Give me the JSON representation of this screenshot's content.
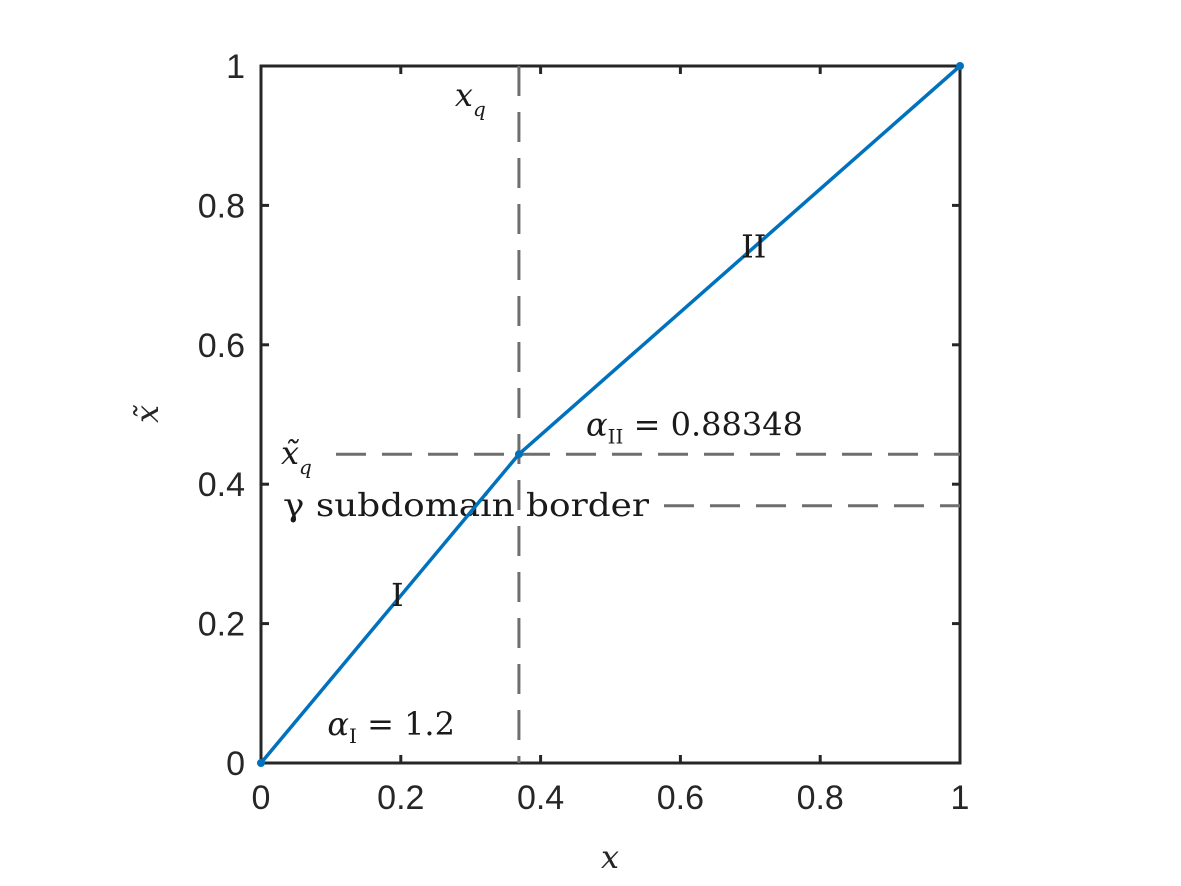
{
  "chart_data": {
    "type": "line",
    "xlabel": "x",
    "ylabel": "x̃",
    "xlim": [
      0,
      1
    ],
    "ylim": [
      0,
      1
    ],
    "x_ticks": [
      "0",
      "0.2",
      "0.4",
      "0.6",
      "0.8",
      "1"
    ],
    "y_ticks": [
      "0",
      "0.2",
      "0.4",
      "0.6",
      "0.8",
      "1"
    ],
    "grid": false,
    "series": [
      {
        "color": "#0072BD",
        "points": [
          [
            0,
            0
          ],
          [
            0.369,
            0.443
          ],
          [
            1,
            1
          ]
        ]
      }
    ],
    "reference_lines": [
      {
        "orientation": "vertical",
        "value": 0.369,
        "style": "dashed",
        "label": "x",
        "label_subscript": "q"
      },
      {
        "orientation": "horizontal",
        "value": 0.443,
        "style": "dashed",
        "label": "x̃",
        "label_subscript": "q"
      },
      {
        "orientation": "horizontal",
        "value": 0.369,
        "style": "dashed",
        "label": "γ subdomain border"
      }
    ],
    "annotations": [
      {
        "text": "I",
        "x": 0.195,
        "y": 0.225
      },
      {
        "text": "II",
        "x": 0.705,
        "y": 0.725
      },
      {
        "text": "α",
        "subscript": "I",
        "suffix": " = 1.2",
        "x": 0.095,
        "y": 0.04
      },
      {
        "text": "α",
        "subscript": "II",
        "suffix": " = 0.88348",
        "x": 0.465,
        "y": 0.47
      }
    ],
    "colors": {
      "line": "#0072BD",
      "axes": "#262626",
      "reference": "#6e6e6e"
    }
  }
}
